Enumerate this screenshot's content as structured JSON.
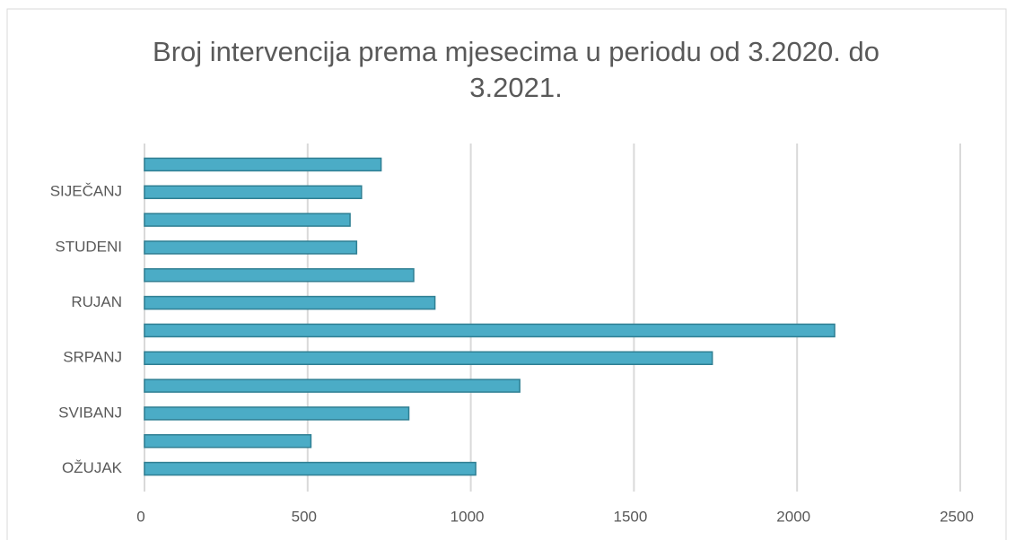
{
  "chart_data": {
    "type": "bar",
    "orientation": "horizontal",
    "title": "Broj intervencija prema mjesecima u periodu od 3.2020. do 3.2021.",
    "categories": [
      "OŽUJAK",
      null,
      "SVIBANJ",
      null,
      "SRPANJ",
      null,
      "RUJAN",
      null,
      "STUDENI",
      null,
      "SIJEČANJ",
      null
    ],
    "values": [
      1015,
      510,
      810,
      1150,
      1740,
      2115,
      890,
      825,
      650,
      630,
      665,
      725
    ],
    "color": "#4bacc6",
    "xlim": [
      0,
      2500
    ],
    "xticks": [
      0,
      500,
      1000,
      1500,
      2000,
      2500
    ],
    "grid": true
  }
}
